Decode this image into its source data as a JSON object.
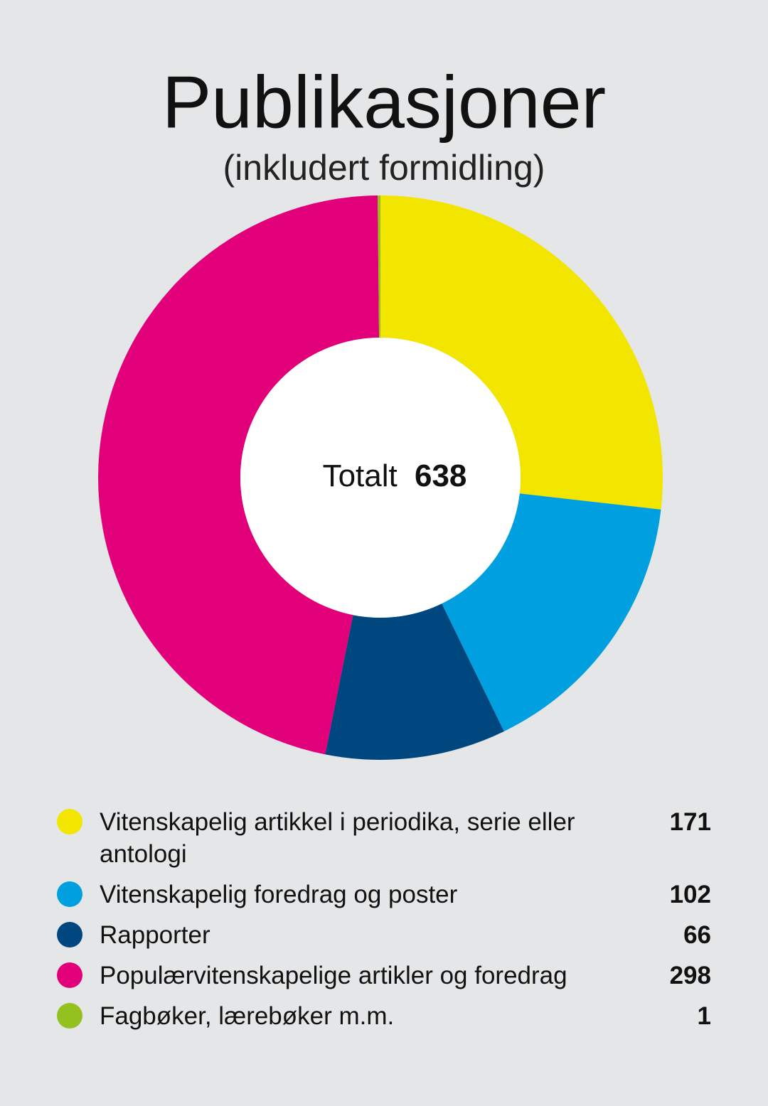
{
  "chart_data": {
    "type": "donut",
    "title": "Publikasjoner",
    "subtitle": "(inkludert formidling)",
    "center_label": "Totalt",
    "total": 638,
    "categories": [
      "Vitenskapelig artikkel i periodika, serie eller antologi",
      "Vitenskapelig foredrag og poster",
      "Rapporter",
      "Populærvitenskapelige artikler og foredrag",
      "Fagbøker, lærebøker m.m."
    ],
    "values": [
      171,
      102,
      66,
      298,
      1
    ],
    "colors": [
      "#f2e500",
      "#009fdf",
      "#00467f",
      "#e2007a",
      "#95c11f"
    ]
  }
}
